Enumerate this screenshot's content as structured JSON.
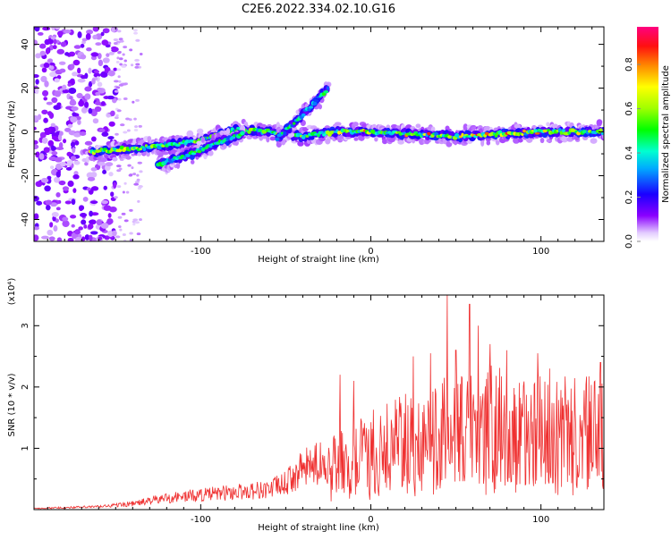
{
  "title": "C2E6.2022.334.02.10.G16",
  "chart_data": [
    {
      "type": "heatmap",
      "xlabel": "Height of straight line (km)",
      "ylabel": "Frequency (Hz)",
      "xlim": [
        -198,
        137
      ],
      "ylim": [
        -50,
        48
      ],
      "x_ticks": [
        -100,
        0,
        100
      ],
      "y_ticks": [
        -40,
        -20,
        0,
        20,
        40
      ],
      "colorbar": {
        "label": "Normalized spectral amplitude",
        "range": [
          0,
          0.97
        ],
        "ticks": [
          0.0,
          0.2,
          0.4,
          0.6,
          0.8
        ],
        "colors": [
          "#ffffff",
          "#d9b3ff",
          "#8000ff",
          "#0000ff",
          "#00ffff",
          "#00ff00",
          "#ffff00",
          "#ff8000",
          "#ff0000",
          "#ff0080"
        ]
      },
      "features": [
        {
          "name": "main-band",
          "points": [
            [
              -165,
              -9
            ],
            [
              -130,
              -7
            ],
            [
              -100,
              -4
            ],
            [
              -80,
              1
            ],
            [
              -60,
              0
            ],
            [
              -40,
              -2
            ],
            [
              -20,
              0
            ],
            [
              0,
              0
            ],
            [
              50,
              -2
            ],
            [
              100,
              0
            ],
            [
              137,
              0
            ]
          ]
        },
        {
          "name": "lower-band",
          "points": [
            [
              -125,
              -15
            ],
            [
              -105,
              -10
            ],
            [
              -90,
              -5
            ],
            [
              -75,
              -1
            ]
          ]
        },
        {
          "name": "rising-streak",
          "points": [
            [
              -55,
              -3
            ],
            [
              -45,
              4
            ],
            [
              -35,
              12
            ],
            [
              -25,
              20
            ]
          ]
        }
      ]
    },
    {
      "type": "line",
      "xlabel": "Height of straight line (km)",
      "ylabel": "SNR (10 * v/v)",
      "exponent_label": "(x10⁴)",
      "xlim": [
        -198,
        137
      ],
      "ylim": [
        0,
        3.5
      ],
      "x_ticks": [
        -100,
        0,
        100
      ],
      "y_ticks": [
        1,
        2,
        3
      ],
      "series_color": "#ef3030",
      "envelope": [
        [
          -198,
          0.02
        ],
        [
          -160,
          0.05
        ],
        [
          -140,
          0.1
        ],
        [
          -120,
          0.2
        ],
        [
          -100,
          0.25
        ],
        [
          -80,
          0.3
        ],
        [
          -60,
          0.35
        ],
        [
          -50,
          0.45
        ],
        [
          -40,
          0.7
        ],
        [
          -30,
          0.8
        ],
        [
          -20,
          0.85
        ],
        [
          -10,
          1.0
        ],
        [
          0,
          1.15
        ],
        [
          20,
          1.3
        ],
        [
          40,
          1.5
        ],
        [
          60,
          1.65
        ],
        [
          80,
          1.6
        ],
        [
          100,
          1.55
        ],
        [
          120,
          1.5
        ],
        [
          137,
          1.5
        ]
      ],
      "peaks": [
        [
          -18,
          2.2
        ],
        [
          -10,
          2.1
        ],
        [
          25,
          2.5
        ],
        [
          35,
          2.55
        ],
        [
          45,
          3.5
        ],
        [
          50,
          2.6
        ],
        [
          58,
          3.35
        ],
        [
          63,
          3.0
        ],
        [
          70,
          2.7
        ],
        [
          80,
          2.6
        ],
        [
          98,
          2.55
        ],
        [
          105,
          2.3
        ],
        [
          135,
          2.4
        ]
      ]
    }
  ]
}
